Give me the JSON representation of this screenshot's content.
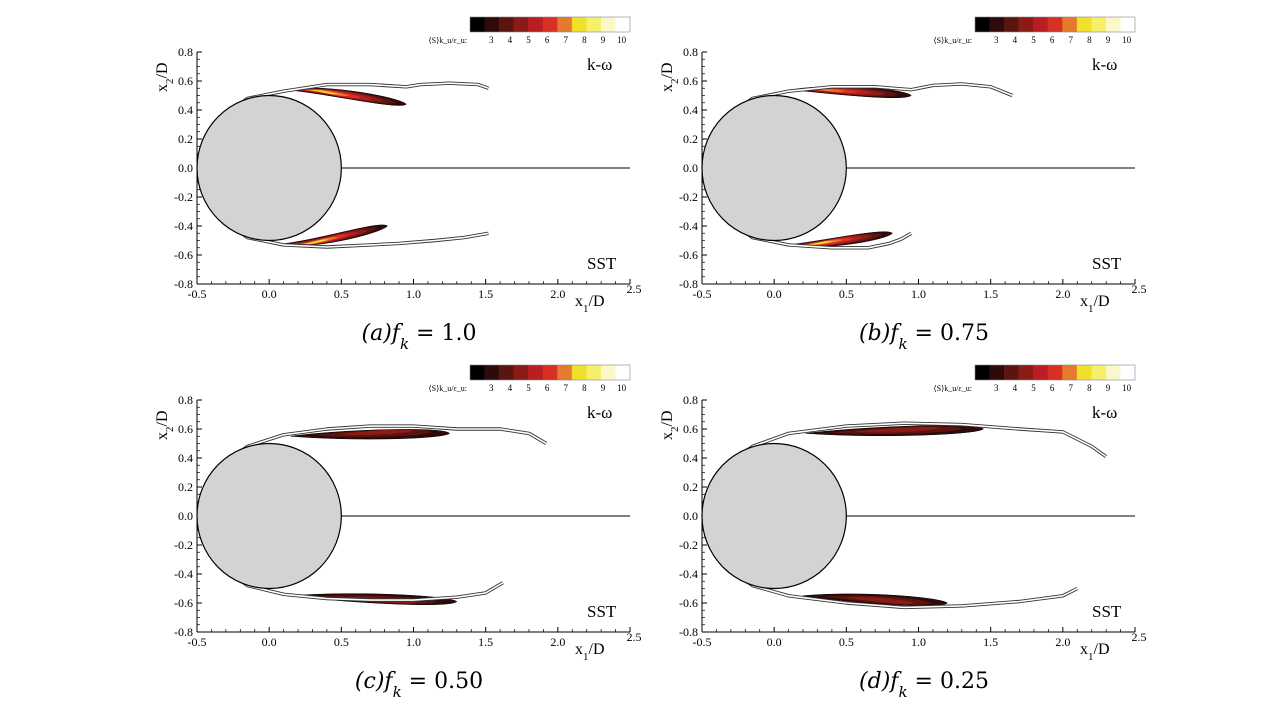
{
  "figure": {
    "colorbar_label": "⟨S⟩k_u/ε_u:",
    "colorbar_ticks": [
      "3",
      "4",
      "5",
      "6",
      "7",
      "8",
      "9",
      "10"
    ],
    "colorbar_colors": [
      "#000000",
      "#2e0a0a",
      "#5c1410",
      "#8c1a17",
      "#b81e22",
      "#d93024",
      "#e37a2e",
      "#f0e02a",
      "#f5ef6a",
      "#faf8c8",
      "#ffffff"
    ],
    "top_tag": "k-ω",
    "bottom_tag": "SST",
    "xlabel": "x1/D",
    "ylabel": "x2/D"
  },
  "chart_data": [
    {
      "type": "contour",
      "caption": "(a)f_k = 1.0",
      "xlim": [
        -0.5,
        2.5
      ],
      "ylim": [
        -0.8,
        0.8
      ],
      "xticks": [
        "-0.5",
        "0.0",
        "0.5",
        "1.0",
        "1.5",
        "2.0",
        "2.5"
      ],
      "yticks": [
        "0.8",
        "0.6",
        "0.4",
        "0.2",
        "0.0",
        "-0.2",
        "-0.4",
        "-0.6",
        "-0.8"
      ],
      "cylinder": {
        "center": [
          0,
          0
        ],
        "radius": 0.5
      },
      "wake_centerline": [
        0.5,
        2.5
      ],
      "top_shear_layer": [
        [
          -0.47,
          0.1
        ],
        [
          -0.35,
          0.33
        ],
        [
          -0.15,
          0.48
        ],
        [
          0.1,
          0.53
        ],
        [
          0.4,
          0.575
        ],
        [
          0.7,
          0.575
        ],
        [
          0.95,
          0.56
        ],
        [
          1.05,
          0.575
        ],
        [
          1.25,
          0.585
        ],
        [
          1.45,
          0.575
        ],
        [
          1.52,
          0.55
        ]
      ],
      "bottom_shear_layer": [
        [
          -0.47,
          -0.1
        ],
        [
          -0.35,
          -0.33
        ],
        [
          -0.15,
          -0.48
        ],
        [
          0.1,
          -0.53
        ],
        [
          0.4,
          -0.545
        ],
        [
          0.7,
          -0.53
        ],
        [
          0.9,
          -0.52
        ],
        [
          1.15,
          -0.5
        ],
        [
          1.35,
          -0.48
        ],
        [
          1.52,
          -0.45
        ]
      ],
      "top_contour": {
        "start": [
          0.12,
          0.54
        ],
        "end": [
          0.95,
          0.44
        ],
        "peak": [
          0.35,
          0.53
        ],
        "max_level": 9
      },
      "bottom_contour": {
        "start": [
          0.08,
          -0.525
        ],
        "end": [
          0.82,
          -0.4
        ],
        "peak": [
          0.3,
          -0.52
        ],
        "max_level": 9
      }
    },
    {
      "type": "contour",
      "caption": "(b)f_k = 0.75",
      "xlim": [
        -0.5,
        2.5
      ],
      "ylim": [
        -0.8,
        0.8
      ],
      "xticks": [
        "-0.5",
        "0.0",
        "0.5",
        "1.0",
        "1.5",
        "2.0",
        "2.5"
      ],
      "yticks": [
        "0.8",
        "0.6",
        "0.4",
        "0.2",
        "0.0",
        "-0.2",
        "-0.4",
        "-0.6",
        "-0.8"
      ],
      "cylinder": {
        "center": [
          0,
          0
        ],
        "radius": 0.5
      },
      "wake_centerline": [
        0.5,
        2.5
      ],
      "top_shear_layer": [
        [
          -0.47,
          0.1
        ],
        [
          -0.35,
          0.33
        ],
        [
          -0.15,
          0.48
        ],
        [
          0.1,
          0.53
        ],
        [
          0.4,
          0.56
        ],
        [
          0.7,
          0.56
        ],
        [
          0.95,
          0.54
        ],
        [
          1.1,
          0.57
        ],
        [
          1.3,
          0.58
        ],
        [
          1.5,
          0.56
        ],
        [
          1.65,
          0.5
        ]
      ],
      "bottom_shear_layer": [
        [
          -0.47,
          -0.1
        ],
        [
          -0.35,
          -0.33
        ],
        [
          -0.15,
          -0.48
        ],
        [
          0.1,
          -0.53
        ],
        [
          0.4,
          -0.55
        ],
        [
          0.65,
          -0.55
        ],
        [
          0.8,
          -0.52
        ],
        [
          0.88,
          -0.49
        ],
        [
          0.95,
          -0.45
        ]
      ],
      "top_contour": {
        "start": [
          0.12,
          0.54
        ],
        "end": [
          0.95,
          0.5
        ],
        "peak": [
          0.35,
          0.54
        ],
        "max_level": 8
      },
      "bottom_contour": {
        "start": [
          0.1,
          -0.53
        ],
        "end": [
          0.82,
          -0.45
        ],
        "peak": [
          0.3,
          -0.52
        ],
        "max_level": 9
      }
    },
    {
      "type": "contour",
      "caption": "(c)f_k = 0.50",
      "xlim": [
        -0.5,
        2.5
      ],
      "ylim": [
        -0.8,
        0.8
      ],
      "xticks": [
        "-0.5",
        "0.0",
        "0.5",
        "1.0",
        "1.5",
        "2.0",
        "2.5"
      ],
      "yticks": [
        "0.8",
        "0.6",
        "0.4",
        "0.2",
        "0.0",
        "-0.2",
        "-0.4",
        "-0.6",
        "-0.8"
      ],
      "cylinder": {
        "center": [
          0,
          0
        ],
        "radius": 0.5
      },
      "wake_centerline": [
        0.5,
        2.5
      ],
      "top_shear_layer": [
        [
          -0.47,
          0.1
        ],
        [
          -0.35,
          0.33
        ],
        [
          -0.15,
          0.48
        ],
        [
          0.1,
          0.56
        ],
        [
          0.4,
          0.6
        ],
        [
          0.7,
          0.62
        ],
        [
          1.0,
          0.62
        ],
        [
          1.3,
          0.6
        ],
        [
          1.6,
          0.6
        ],
        [
          1.8,
          0.57
        ],
        [
          1.92,
          0.5
        ]
      ],
      "bottom_shear_layer": [
        [
          -0.47,
          -0.1
        ],
        [
          -0.35,
          -0.33
        ],
        [
          -0.15,
          -0.48
        ],
        [
          0.1,
          -0.54
        ],
        [
          0.4,
          -0.57
        ],
        [
          0.7,
          -0.58
        ],
        [
          1.0,
          -0.58
        ],
        [
          1.3,
          -0.56
        ],
        [
          1.5,
          -0.53
        ],
        [
          1.62,
          -0.46
        ]
      ],
      "top_contour": {
        "start": [
          0.15,
          0.55
        ],
        "end": [
          1.25,
          0.57
        ],
        "peak": [
          0.8,
          0.6
        ],
        "max_level": 5
      },
      "bottom_contour": {
        "start": [
          0.15,
          -0.55
        ],
        "end": [
          1.3,
          -0.59
        ],
        "peak": [
          0.8,
          -0.6
        ],
        "max_level": 5
      }
    },
    {
      "type": "contour",
      "caption": "(d)f_k = 0.25",
      "xlim": [
        -0.5,
        2.5
      ],
      "ylim": [
        -0.8,
        0.8
      ],
      "xticks": [
        "-0.5",
        "0.0",
        "0.5",
        "1.0",
        "1.5",
        "2.0",
        "2.5"
      ],
      "yticks": [
        "0.8",
        "0.6",
        "0.4",
        "0.2",
        "0.0",
        "-0.2",
        "-0.4",
        "-0.6",
        "-0.8"
      ],
      "cylinder": {
        "center": [
          0,
          0
        ],
        "radius": 0.5
      },
      "wake_centerline": [
        0.5,
        2.5
      ],
      "top_shear_layer": [
        [
          -0.47,
          0.1
        ],
        [
          -0.35,
          0.33
        ],
        [
          -0.15,
          0.48
        ],
        [
          0.1,
          0.57
        ],
        [
          0.5,
          0.62
        ],
        [
          0.9,
          0.64
        ],
        [
          1.3,
          0.63
        ],
        [
          1.7,
          0.6
        ],
        [
          2.0,
          0.58
        ],
        [
          2.2,
          0.48
        ],
        [
          2.3,
          0.41
        ]
      ],
      "bottom_shear_layer": [
        [
          -0.47,
          -0.1
        ],
        [
          -0.35,
          -0.33
        ],
        [
          -0.15,
          -0.48
        ],
        [
          0.1,
          -0.55
        ],
        [
          0.5,
          -0.6
        ],
        [
          0.9,
          -0.63
        ],
        [
          1.3,
          -0.62
        ],
        [
          1.7,
          -0.59
        ],
        [
          2.0,
          -0.55
        ],
        [
          2.1,
          -0.5
        ]
      ],
      "top_contour": {
        "start": [
          0.22,
          0.57
        ],
        "end": [
          1.45,
          0.6
        ],
        "peak": [
          0.9,
          0.61
        ],
        "max_level": 5
      },
      "bottom_contour": {
        "start": [
          0.2,
          -0.55
        ],
        "end": [
          1.2,
          -0.6
        ],
        "peak": [
          0.8,
          -0.6
        ],
        "max_level": 5
      }
    }
  ]
}
